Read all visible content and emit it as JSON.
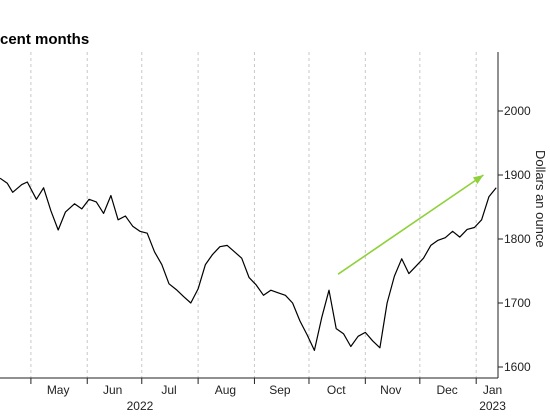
{
  "chart_data": {
    "type": "line",
    "title": "cent months",
    "ylabel": "Dollars an ounce",
    "ylim": [
      1600,
      2100
    ],
    "y_ticks": [
      1600,
      1700,
      1800,
      1900,
      2000
    ],
    "y_tick_labels": [
      "1600",
      "1700",
      "1800",
      "1900",
      "2000"
    ],
    "x_range": [
      "2022-04-14",
      "2023-01-13"
    ],
    "x_month_labels": [
      {
        "label": "May",
        "date": "2022-05-16"
      },
      {
        "label": "Jun",
        "date": "2022-06-15"
      },
      {
        "label": "Jul",
        "date": "2022-07-16"
      },
      {
        "label": "Aug",
        "date": "2022-08-16"
      },
      {
        "label": "Sep",
        "date": "2022-09-15"
      },
      {
        "label": "Oct",
        "date": "2022-10-16"
      },
      {
        "label": "Nov",
        "date": "2022-11-15"
      },
      {
        "label": "Dec",
        "date": "2022-12-16"
      },
      {
        "label": "Jan",
        "date": "2023-01-10"
      }
    ],
    "x_year_labels": [
      {
        "label": "2022",
        "date": "2022-06-30"
      },
      {
        "label": "2023",
        "date": "2023-01-10"
      }
    ],
    "month_gridlines": [
      "2022-05-01",
      "2022-06-01",
      "2022-07-01",
      "2022-08-01",
      "2022-09-01",
      "2022-10-01",
      "2022-11-01",
      "2022-12-01",
      "2023-01-01"
    ],
    "grid": "vertical dashed at month boundaries",
    "line_color": "#000000",
    "arrow_color": "#8fd13a",
    "arrow_annotation": {
      "start": {
        "x": "2022-10-17",
        "y": 1745
      },
      "end": {
        "x": "2023-01-05",
        "y": 1900
      }
    },
    "series": [
      {
        "x": [
          "2022-04-14",
          "2022-04-18",
          "2022-04-21",
          "2022-04-26",
          "2022-04-29",
          "2022-05-04",
          "2022-05-08",
          "2022-05-12",
          "2022-05-16",
          "2022-05-20",
          "2022-05-25",
          "2022-05-29",
          "2022-06-02",
          "2022-06-06",
          "2022-06-10",
          "2022-06-14",
          "2022-06-18",
          "2022-06-22",
          "2022-06-26",
          "2022-06-30",
          "2022-07-04",
          "2022-07-08",
          "2022-07-12",
          "2022-07-16",
          "2022-07-20",
          "2022-07-24",
          "2022-07-28",
          "2022-08-01",
          "2022-08-05",
          "2022-08-09",
          "2022-08-13",
          "2022-08-17",
          "2022-08-21",
          "2022-08-25",
          "2022-08-29",
          "2022-09-02",
          "2022-09-06",
          "2022-09-10",
          "2022-09-14",
          "2022-09-18",
          "2022-09-22",
          "2022-09-26",
          "2022-09-30",
          "2022-10-04",
          "2022-10-08",
          "2022-10-12",
          "2022-10-16",
          "2022-10-20",
          "2022-10-24",
          "2022-10-28",
          "2022-11-01",
          "2022-11-05",
          "2022-11-09",
          "2022-11-13",
          "2022-11-17",
          "2022-11-21",
          "2022-11-25",
          "2022-11-29",
          "2022-12-03",
          "2022-12-07",
          "2022-12-11",
          "2022-12-15",
          "2022-12-19",
          "2022-12-23",
          "2022-12-27",
          "2022-12-31",
          "2023-01-04",
          "2023-01-08",
          "2023-01-12"
        ],
        "y": [
          1895,
          1887,
          1873,
          1885,
          1889,
          1862,
          1880,
          1844,
          1814,
          1842,
          1855,
          1847,
          1862,
          1858,
          1840,
          1868,
          1830,
          1836,
          1820,
          1812,
          1809,
          1780,
          1760,
          1730,
          1721,
          1710,
          1700,
          1722,
          1760,
          1776,
          1788,
          1790,
          1780,
          1770,
          1740,
          1728,
          1712,
          1720,
          1716,
          1712,
          1700,
          1672,
          1650,
          1626,
          1677,
          1720,
          1660,
          1652,
          1632,
          1648,
          1654,
          1641,
          1630,
          1700,
          1742,
          1769,
          1746,
          1758,
          1770,
          1790,
          1798,
          1802,
          1812,
          1803,
          1815,
          1818,
          1830,
          1866,
          1880
        ]
      }
    ]
  }
}
